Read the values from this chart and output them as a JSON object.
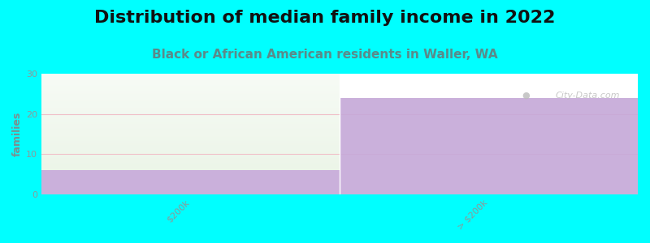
{
  "title": "Distribution of median family income in 2022",
  "subtitle": "Black or African American residents in Waller, WA",
  "categories": [
    "$200k",
    "> $200k"
  ],
  "bar1_purple_val": 6,
  "bar2_val": 24,
  "ylim": [
    0,
    30
  ],
  "yticks": [
    0,
    10,
    20,
    30
  ],
  "ylabel": "families",
  "background_color": "#00FFFF",
  "plot_bg_color": "#FFFFFF",
  "purple_color": "#C5A8D8",
  "green_top_color": "#E2F0DC",
  "green_bottom_color": "#F5FAF3",
  "title_fontsize": 16,
  "subtitle_fontsize": 11,
  "subtitle_color": "#5A8A8A",
  "ylabel_color": "#7A9090",
  "tick_color": "#8A9A9A",
  "watermark": "City-Data.com",
  "grid_color": "#F0C0C8",
  "bar_edge_color": "#E0E0E0"
}
